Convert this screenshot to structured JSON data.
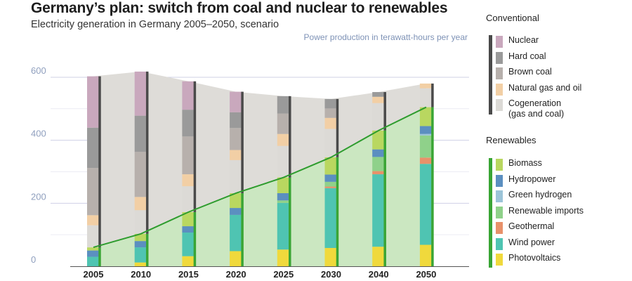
{
  "chart_data": {
    "type": "bar",
    "title": "Germany’s plan: switch from coal and nuclear to renewables",
    "subtitle": "Electricity generation in Germany 2005–2050, scenario",
    "ylabel": "Power production in terawatt-hours per year",
    "ylim": [
      0,
      650
    ],
    "yticks": [
      "0",
      "200",
      "400",
      "600"
    ],
    "ytick_values": [
      0,
      200,
      400,
      600
    ],
    "categories": [
      "2005",
      "2010",
      "2015",
      "2020",
      "2025",
      "2030",
      "2040",
      "2050"
    ],
    "groups": [
      {
        "name": "Conventional",
        "series": [
          {
            "name": "Cogeneration (gas and coal)",
            "label_lines": [
              "Cogeneration",
              "(gas and coal)"
            ],
            "color": "#dcdad6",
            "values": [
              70,
              75,
              82,
              105,
              100,
              90,
              87,
              60
            ]
          },
          {
            "name": "Natural gas and oil",
            "label_lines": [
              "Natural gas and oil"
            ],
            "color": "#f2cfa5",
            "values": [
              32,
              42,
              38,
              32,
              38,
              35,
              20,
              15
            ]
          },
          {
            "name": "Brown coal",
            "label_lines": [
              "Brown coal"
            ],
            "color": "#b7b0ac",
            "values": [
              150,
              143,
              120,
              70,
              65,
              30,
              0,
              0
            ]
          },
          {
            "name": "Hard coal",
            "label_lines": [
              "Hard coal"
            ],
            "color": "#9a9a9a",
            "values": [
              128,
              115,
              85,
              50,
              55,
              30,
              15,
              0
            ]
          },
          {
            "name": "Nuclear",
            "label_lines": [
              "Nuclear"
            ],
            "color": "#c9a8bd",
            "values": [
              163,
              140,
              90,
              65,
              0,
              0,
              0,
              0
            ]
          }
        ]
      },
      {
        "name": "Renewables",
        "series": [
          {
            "name": "Photovoltaics",
            "label_lines": [
              "Photovoltaics"
            ],
            "color": "#f0d93c",
            "values": [
              0,
              12,
              32,
              48,
              53,
              58,
              62,
              68
            ]
          },
          {
            "name": "Wind power",
            "label_lines": [
              "Wind power"
            ],
            "color": "#4fc4b2",
            "values": [
              30,
              48,
              75,
              115,
              148,
              190,
              230,
              257
            ]
          },
          {
            "name": "Geothermal",
            "label_lines": [
              "Geothermal"
            ],
            "color": "#e8916a",
            "values": [
              0,
              0,
              0,
              0,
              0,
              5,
              10,
              20
            ]
          },
          {
            "name": "Renewable imports",
            "label_lines": [
              "Renewable imports"
            ],
            "color": "#8fd18a",
            "values": [
              0,
              0,
              0,
              0,
              8,
              15,
              45,
              70
            ]
          },
          {
            "name": "Green hydrogen",
            "label_lines": [
              "Green hydrogen"
            ],
            "color": "#9cc4d8",
            "values": [
              0,
              0,
              0,
              0,
              0,
              0,
              0,
              5
            ]
          },
          {
            "name": "Hydropower",
            "label_lines": [
              "Hydropower"
            ],
            "color": "#5b8fc0",
            "values": [
              20,
              20,
              20,
              22,
              23,
              23,
              24,
              25
            ]
          },
          {
            "name": "Biomass",
            "label_lines": [
              "Biomass"
            ],
            "color": "#b9d760",
            "values": [
              10,
              23,
              45,
              47,
              50,
              55,
              60,
              60
            ]
          }
        ]
      }
    ],
    "legend": "right"
  }
}
